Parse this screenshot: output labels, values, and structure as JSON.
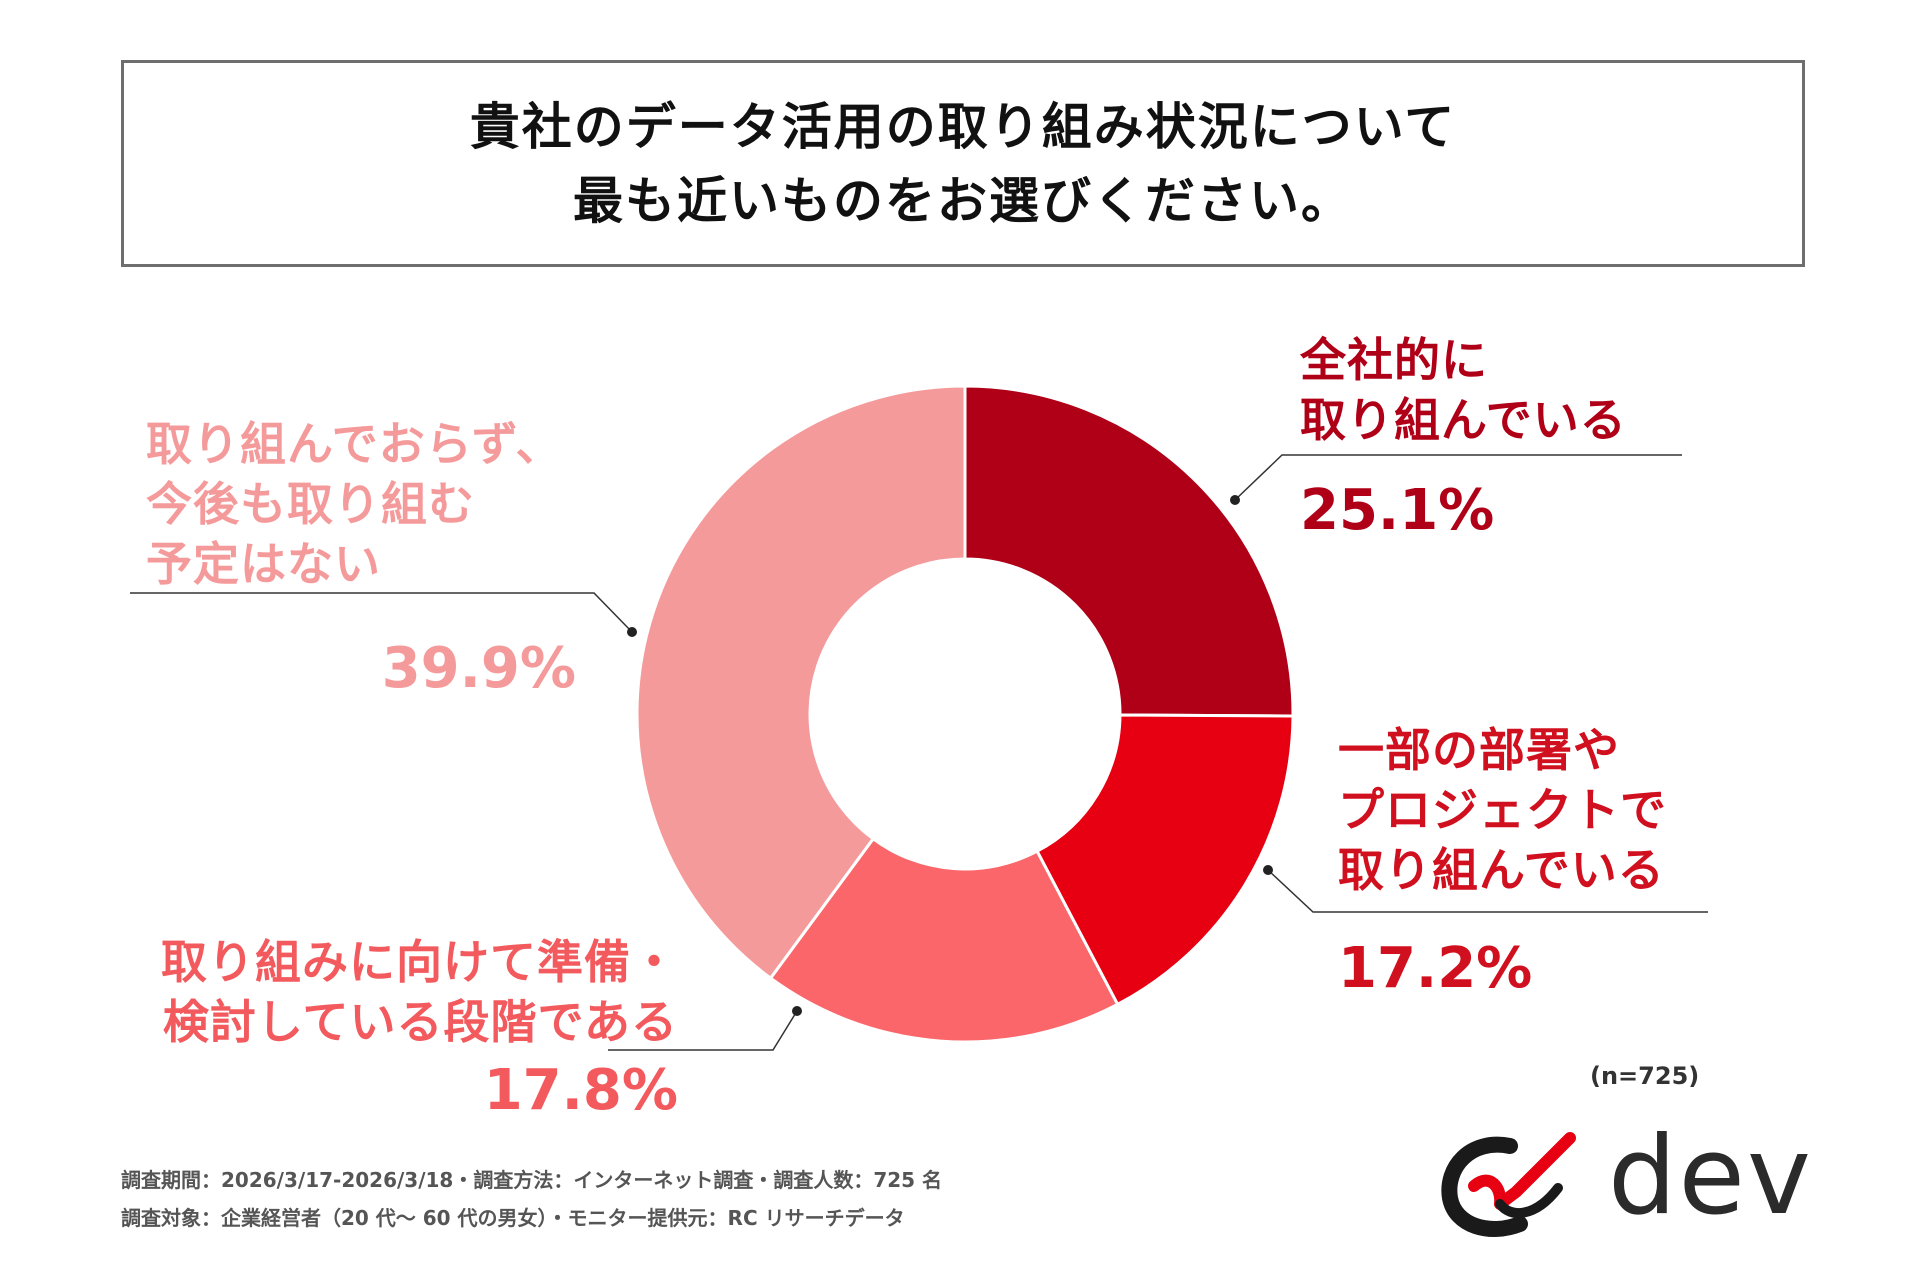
{
  "title": {
    "line1": "貴社のデータ活用の取り組み状況について",
    "line2": "最も近いものをお選びください。"
  },
  "chart_data": {
    "type": "pie",
    "style": "donut",
    "start": "12 o'clock, clockwise",
    "slices": [
      {
        "label": "全社的に\n取り組んでいる",
        "value": 25.1,
        "display": "25.1%",
        "color": "#af0018"
      },
      {
        "label": "一部の部署や\nプロジェクトで\n取り組んでいる",
        "value": 17.2,
        "display": "17.2%",
        "color": "#e60012"
      },
      {
        "label": "取り組みに向けて準備・\n検討している段階である",
        "value": 17.8,
        "display": "17.8%",
        "color": "#fa6669"
      },
      {
        "label": "取り組んでおらず、\n今後も取り組む\n予定はない",
        "value": 39.9,
        "display": "39.9%",
        "color": "#f59a9b"
      }
    ]
  },
  "sample_size": "(n=725)",
  "footer": {
    "line1": "調査期間：2026/3/17-2026/3/18・調査方法：インターネット調査・調査人数：725 名",
    "line2": "調査対象：企業経営者（20 代～ 60 代の男女）・モニター提供元：RC リサーチデータ"
  },
  "logo": {
    "text": "dev"
  }
}
